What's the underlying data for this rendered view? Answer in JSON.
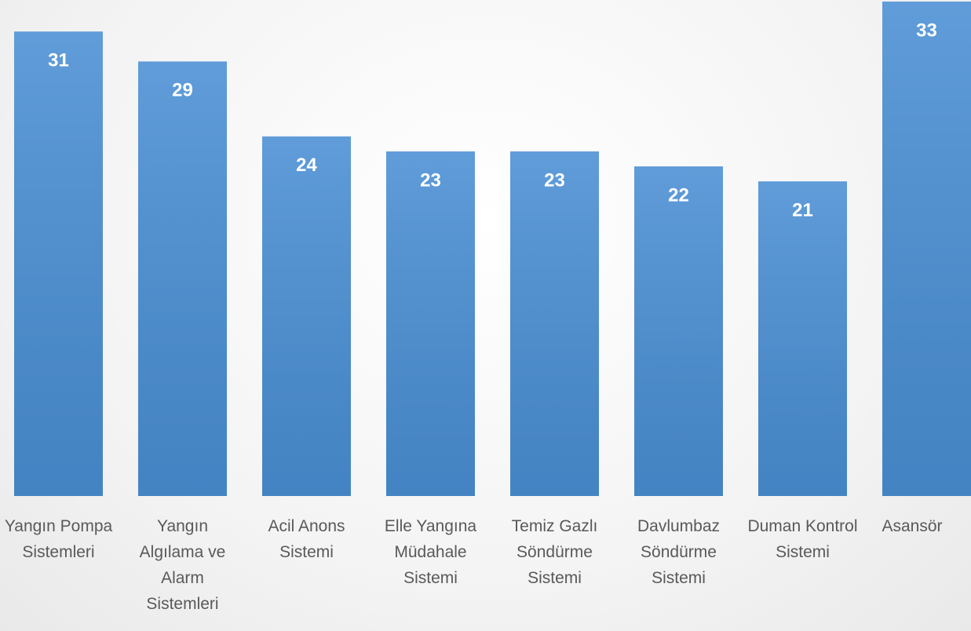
{
  "chart_data": {
    "type": "bar",
    "categories": [
      "Yangın Pompa Sistemleri",
      "Yangın Algılama ve Alarm Sistemleri",
      "Acil Anons Sistemi",
      "Elle Yangına Müdahale Sistemi",
      "Temiz Gazlı Söndürme Sistemi",
      "Davlumbaz Söndürme Sistemi",
      "Duman Kontrol Sistemi",
      "Asansör"
    ],
    "values": [
      31,
      29,
      24,
      23,
      23,
      22,
      21,
      33
    ],
    "color": "#4a8fd4"
  }
}
